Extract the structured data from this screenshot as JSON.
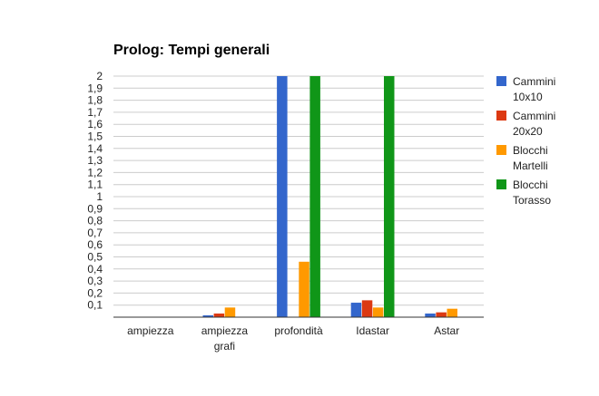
{
  "chart_data": {
    "type": "bar",
    "title": "Prolog: Tempi generali",
    "xlabel": "",
    "ylabel": "",
    "ylim": [
      0,
      2
    ],
    "yticks": [
      "0,1",
      "0,2",
      "0,3",
      "0,4",
      "0,5",
      "0,6",
      "0,7",
      "0,8",
      "0,9",
      "1",
      "1,1",
      "1,2",
      "1,3",
      "1,4",
      "1,5",
      "1,6",
      "1,7",
      "1,8",
      "1,9",
      "2"
    ],
    "grid": true,
    "legend_position": "right",
    "categories": [
      [
        "ampiezza"
      ],
      [
        "ampiezza",
        "grafi"
      ],
      [
        "profondità"
      ],
      [
        "Idastar"
      ],
      [
        "Astar"
      ]
    ],
    "series": [
      {
        "name": [
          "Cammini",
          "10x10"
        ],
        "color": "#3366cc",
        "values": [
          0,
          0.01,
          2,
          0.12,
          0.03
        ]
      },
      {
        "name": [
          "Cammini",
          "20x20"
        ],
        "color": "#dc3912",
        "values": [
          0,
          0.03,
          0,
          0.14,
          0.04
        ]
      },
      {
        "name": [
          "Blocchi",
          "Martelli"
        ],
        "color": "#ff9900",
        "values": [
          0,
          0.08,
          0.46,
          0.08,
          0.07
        ]
      },
      {
        "name": [
          "Blocchi",
          "Torasso"
        ],
        "color": "#109618",
        "values": [
          0,
          0,
          2,
          2,
          0
        ]
      }
    ]
  }
}
